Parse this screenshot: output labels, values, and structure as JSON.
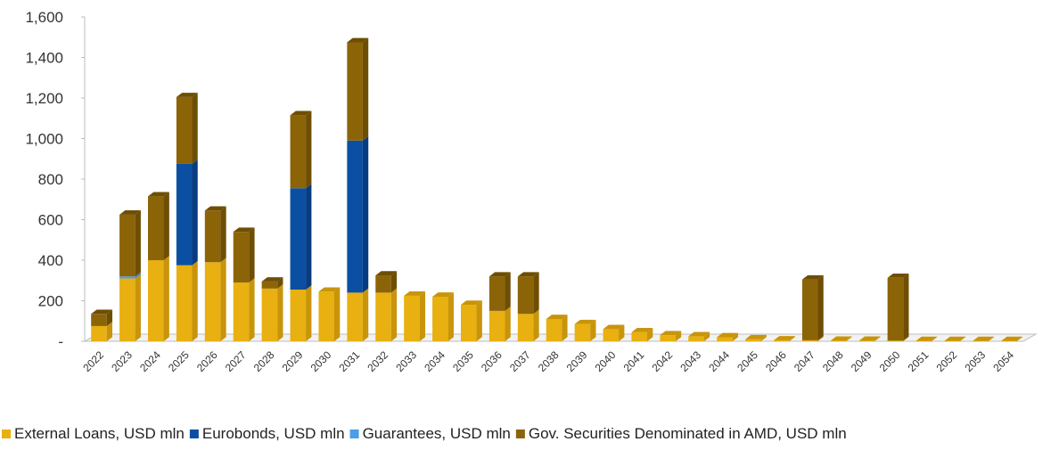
{
  "chart_data": {
    "type": "bar",
    "stacked": true,
    "three_d": true,
    "categories": [
      "2022",
      "2023",
      "2024",
      "2025",
      "2026",
      "2027",
      "2028",
      "2029",
      "2030",
      "2031",
      "2032",
      "2033",
      "2034",
      "2035",
      "2036",
      "2037",
      "2038",
      "2039",
      "2040",
      "2041",
      "2042",
      "2043",
      "2044",
      "2045",
      "2046",
      "2047",
      "2048",
      "2049",
      "2050",
      "2051",
      "2052",
      "2053",
      "2054"
    ],
    "series": [
      {
        "name": "External Loans, USD mln",
        "color": "#E8B010",
        "side_color": "#C8940A",
        "values": [
          75,
          310,
          400,
          375,
          390,
          290,
          260,
          255,
          245,
          240,
          240,
          225,
          220,
          180,
          150,
          135,
          110,
          85,
          60,
          45,
          30,
          25,
          20,
          10,
          5,
          5,
          3,
          3,
          3,
          2,
          2,
          2,
          2
        ]
      },
      {
        "name": "Eurobonds, USD mln",
        "color": "#0B4FA3",
        "side_color": "#083C80",
        "values": [
          0,
          0,
          0,
          500,
          0,
          0,
          0,
          500,
          0,
          750,
          0,
          0,
          0,
          0,
          0,
          0,
          0,
          0,
          0,
          0,
          0,
          0,
          0,
          0,
          0,
          0,
          0,
          0,
          0,
          0,
          0,
          0,
          0
        ]
      },
      {
        "name": "Guarantees, USD mln",
        "color": "#4A9DE8",
        "side_color": "#3A82C8",
        "values": [
          0,
          10,
          0,
          0,
          0,
          0,
          0,
          0,
          0,
          0,
          0,
          0,
          0,
          0,
          0,
          0,
          0,
          0,
          0,
          0,
          0,
          0,
          0,
          0,
          0,
          0,
          0,
          0,
          0,
          0,
          0,
          0,
          0
        ]
      },
      {
        "name": "Gov. Securities Denominated in AMD, USD mln",
        "color": "#8C6408",
        "side_color": "#6E4E05",
        "values": [
          60,
          305,
          315,
          330,
          255,
          250,
          35,
          360,
          0,
          485,
          85,
          0,
          0,
          0,
          170,
          185,
          0,
          0,
          0,
          0,
          0,
          0,
          0,
          0,
          0,
          300,
          0,
          0,
          310,
          0,
          0,
          0,
          0
        ]
      }
    ],
    "yticks": [
      0,
      200,
      400,
      600,
      800,
      1000,
      1200,
      1400,
      1600
    ],
    "ytick_labels": [
      "-",
      "200",
      "400",
      "600",
      "800",
      "1,000",
      "1,200",
      "1,400",
      "1,600"
    ],
    "ylim": [
      0,
      1600
    ],
    "grid": false,
    "legend_position": "bottom",
    "title": "",
    "xlabel": "",
    "ylabel": ""
  }
}
